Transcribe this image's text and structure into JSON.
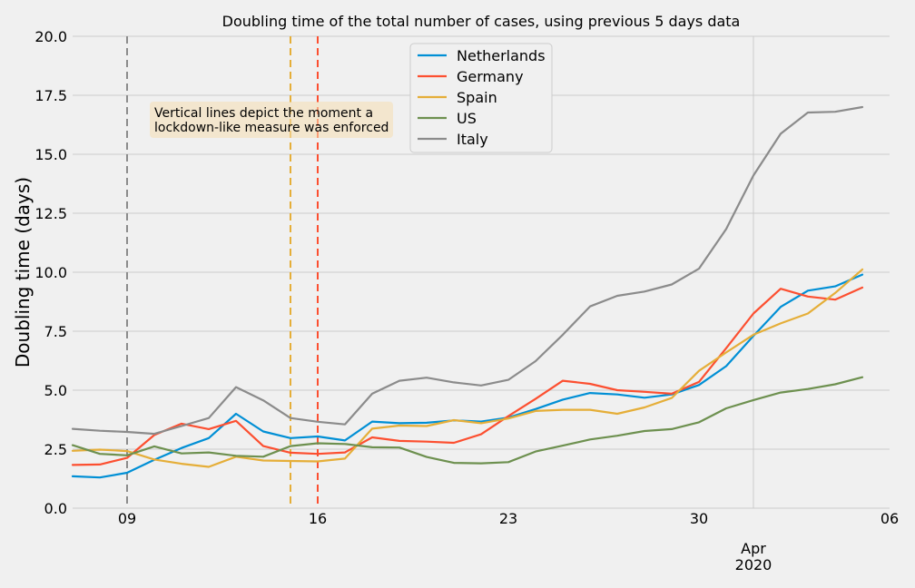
{
  "chart_data": {
    "type": "line",
    "title": "Doubling time of the total number of cases, using previous 5 days data",
    "xlabel": "",
    "ylabel": "Doubling time (days)",
    "ylim": [
      0,
      20
    ],
    "xlim": [
      "2020-03-07",
      "2020-04-06"
    ],
    "yticks": [
      "0.0",
      "2.5",
      "5.0",
      "7.5",
      "10.0",
      "12.5",
      "15.0",
      "17.5",
      "20.0"
    ],
    "xtick_dates": [
      "2020-03-09",
      "2020-03-16",
      "2020-03-23",
      "2020-03-30",
      "2020-04-06"
    ],
    "xtick_labels": [
      "09",
      "16",
      "23",
      "30",
      "06"
    ],
    "month_label": "Apr",
    "year_label": "2020",
    "month_date": "2020-04-01",
    "grid": true,
    "legend_placement": "upper-center",
    "annotation": [
      "Vertical lines depict the moment a",
      "lockdown-like measure was enforced"
    ],
    "vlines": [
      {
        "date": "2020-03-09",
        "color": "#8b8b8b"
      },
      {
        "date": "2020-03-15",
        "color": "#e5ae38"
      },
      {
        "date": "2020-03-16",
        "color": "#fc4f30"
      }
    ],
    "x": [
      "2020-03-07",
      "2020-03-08",
      "2020-03-09",
      "2020-03-10",
      "2020-03-11",
      "2020-03-12",
      "2020-03-13",
      "2020-03-14",
      "2020-03-15",
      "2020-03-16",
      "2020-03-17",
      "2020-03-18",
      "2020-03-19",
      "2020-03-20",
      "2020-03-21",
      "2020-03-22",
      "2020-03-23",
      "2020-03-24",
      "2020-03-25",
      "2020-03-26",
      "2020-03-27",
      "2020-03-28",
      "2020-03-29",
      "2020-03-30",
      "2020-03-31",
      "2020-04-01",
      "2020-04-02",
      "2020-04-03",
      "2020-04-04",
      "2020-04-05"
    ],
    "series": [
      {
        "name": "Netherlands",
        "color": "#008fd5",
        "values": [
          1.35,
          1.3,
          1.5,
          2.05,
          2.55,
          2.97,
          4.0,
          3.25,
          2.97,
          3.04,
          2.87,
          3.67,
          3.6,
          3.62,
          3.72,
          3.67,
          3.84,
          4.2,
          4.6,
          4.88,
          4.82,
          4.68,
          4.82,
          5.22,
          6.02,
          7.3,
          8.53,
          9.22,
          9.4,
          9.9
        ]
      },
      {
        "name": "Germany",
        "color": "#fc4f30",
        "values": [
          1.83,
          1.85,
          2.13,
          3.1,
          3.58,
          3.35,
          3.7,
          2.63,
          2.35,
          2.3,
          2.36,
          3.0,
          2.85,
          2.82,
          2.77,
          3.13,
          3.9,
          4.63,
          5.4,
          5.27,
          5.0,
          4.93,
          4.85,
          5.35,
          6.78,
          8.25,
          9.3,
          8.97,
          8.84,
          9.35
        ]
      },
      {
        "name": "Spain",
        "color": "#e5ae38",
        "values": [
          2.43,
          2.48,
          2.42,
          2.06,
          1.88,
          1.75,
          2.18,
          2.02,
          2.0,
          1.98,
          2.1,
          3.37,
          3.5,
          3.48,
          3.73,
          3.6,
          3.8,
          4.12,
          4.17,
          4.17,
          4.0,
          4.27,
          4.67,
          5.82,
          6.6,
          7.35,
          7.83,
          8.25,
          9.12,
          10.12
        ]
      },
      {
        "name": "US",
        "color": "#6d904f",
        "values": [
          2.67,
          2.3,
          2.24,
          2.62,
          2.32,
          2.36,
          2.22,
          2.18,
          2.63,
          2.75,
          2.72,
          2.58,
          2.57,
          2.17,
          1.92,
          1.9,
          1.95,
          2.4,
          2.65,
          2.91,
          3.07,
          3.27,
          3.35,
          3.64,
          4.23,
          4.58,
          4.9,
          5.05,
          5.25,
          5.55
        ]
      },
      {
        "name": "Italy",
        "color": "#8b8b8b",
        "values": [
          3.36,
          3.28,
          3.23,
          3.15,
          3.48,
          3.82,
          5.13,
          4.57,
          3.82,
          3.66,
          3.55,
          4.85,
          5.4,
          5.53,
          5.33,
          5.2,
          5.44,
          6.23,
          7.35,
          8.55,
          9.0,
          9.18,
          9.48,
          10.15,
          11.83,
          14.1,
          15.87,
          16.77,
          16.8,
          17.0
        ]
      }
    ]
  }
}
